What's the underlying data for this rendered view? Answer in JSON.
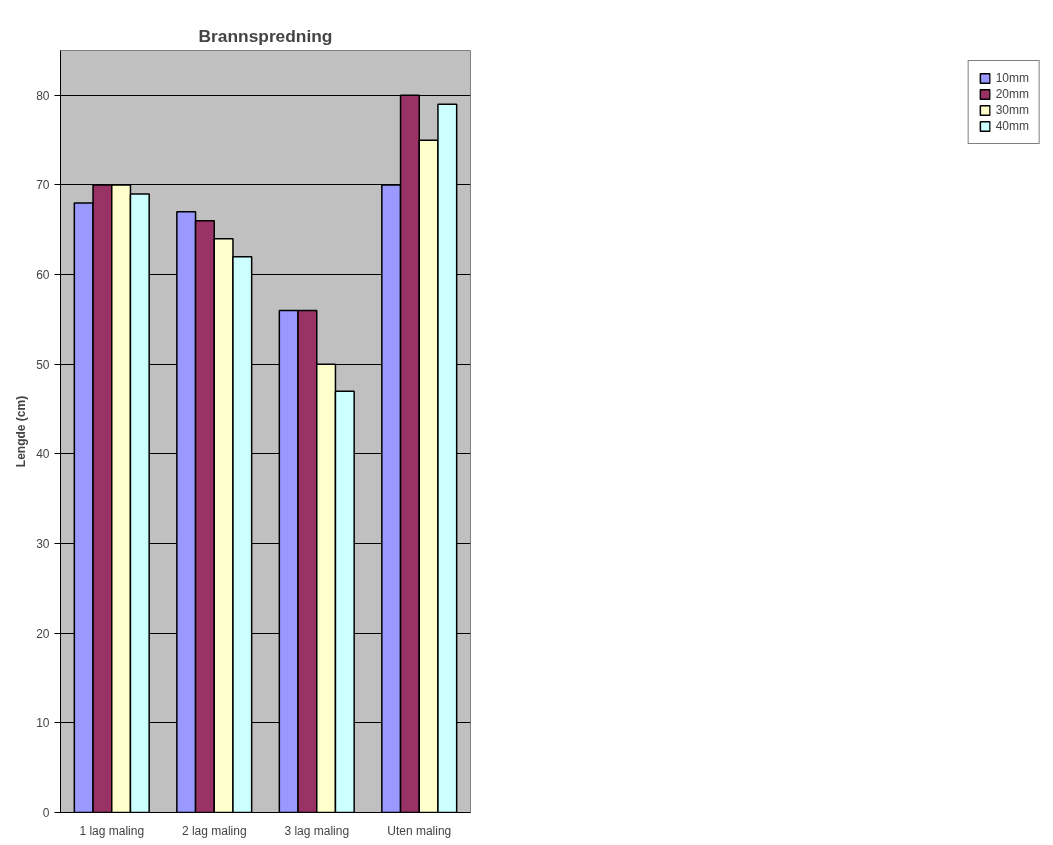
{
  "chart_data": {
    "type": "bar",
    "title": "Brannspredning",
    "ylabel": "Lengde (cm)",
    "categories": [
      "1 lag maling",
      "2 lag maling",
      "3 lag maling",
      "Uten maling"
    ],
    "series": [
      {
        "name": "10mm",
        "color": "#9999ff",
        "values": [
          68,
          67,
          56,
          70
        ]
      },
      {
        "name": "20mm",
        "color": "#993366",
        "values": [
          70,
          66,
          56,
          80
        ]
      },
      {
        "name": "30mm",
        "color": "#ffffcc",
        "values": [
          70,
          64,
          50,
          75
        ]
      },
      {
        "name": "40mm",
        "color": "#ccffff",
        "values": [
          69,
          62,
          47,
          79
        ]
      }
    ],
    "ylim": [
      0,
      85
    ],
    "yticks": [
      0,
      10,
      20,
      30,
      40,
      50,
      60,
      70,
      80
    ],
    "grid": "y",
    "legend": "right"
  }
}
